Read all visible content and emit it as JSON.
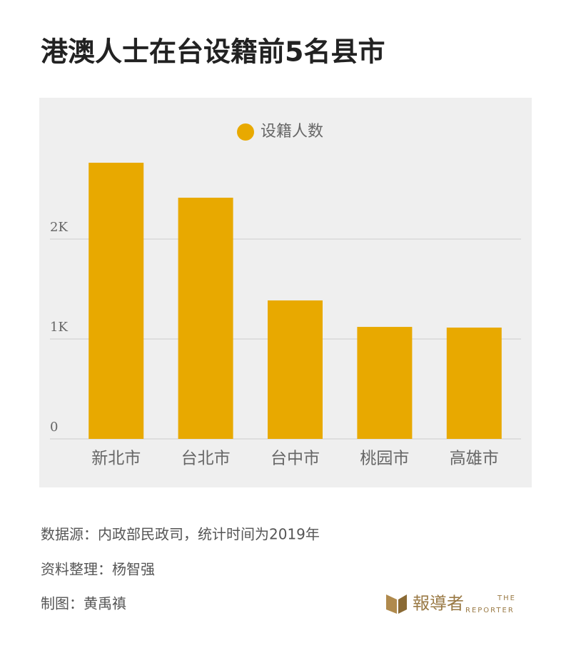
{
  "chart_data": {
    "type": "bar",
    "title": "港澳人士在台设籍前5名县市",
    "categories": [
      "新北市",
      "台北市",
      "台中市",
      "桃园市",
      "高雄市"
    ],
    "series": [
      {
        "name": "设籍人数",
        "color": "#e8a900",
        "values": [
          2764,
          2414,
          1386,
          1121,
          1114
        ]
      }
    ],
    "ylim": [
      0,
      2900
    ],
    "yticks": [
      0,
      {
        "value": 1000,
        "label": "1K"
      },
      {
        "value": 2000,
        "label": "2K"
      }
    ],
    "grid": true,
    "legend": "top"
  },
  "footer": {
    "source": "数据源：内政部民政司，统计时间为2019年",
    "compiled": "资料整理：杨智强",
    "graphic": "制图：黄禹禛",
    "logo": {
      "name": "報導者",
      "the": "THE",
      "reporter": "REPORTER"
    }
  }
}
